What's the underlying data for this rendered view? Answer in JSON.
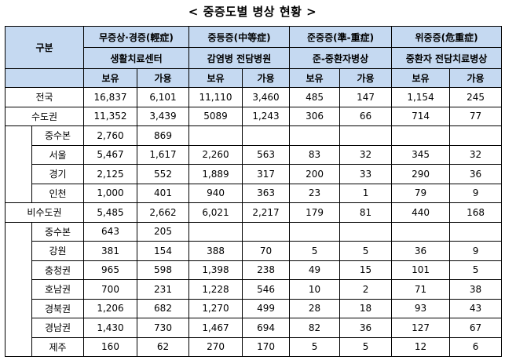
{
  "title": "< 중증도별 병상 현황 >",
  "header": {
    "gubun": "구분",
    "groups": [
      {
        "label": "무증상·경증(輕症)",
        "facility": "생활치료센터"
      },
      {
        "label": "중등증(中等症)",
        "facility": "감염병 전담병원"
      },
      {
        "label": "준중증(準-重症)",
        "facility": "준-중환자병상"
      },
      {
        "label": "위중증(危重症)",
        "facility": "중환자 전담치료병상"
      }
    ],
    "hold": "보유",
    "avail": "가용"
  },
  "rows": [
    {
      "name": "전국",
      "level": 0,
      "v": [
        "16,837",
        "6,101",
        "11,110",
        "3,460",
        "485",
        "147",
        "1,154",
        "245"
      ]
    },
    {
      "name": "수도권",
      "level": 0,
      "v": [
        "11,352",
        "3,439",
        "5089",
        "1,243",
        "306",
        "66",
        "714",
        "77"
      ]
    },
    {
      "name": "중수본",
      "level": 1,
      "v": [
        "2,760",
        "869",
        "",
        "",
        "",
        "",
        "",
        ""
      ]
    },
    {
      "name": "서울",
      "level": 1,
      "v": [
        "5,467",
        "1,617",
        "2,260",
        "563",
        "83",
        "32",
        "345",
        "32"
      ]
    },
    {
      "name": "경기",
      "level": 1,
      "v": [
        "2,125",
        "552",
        "1,889",
        "317",
        "200",
        "33",
        "290",
        "36"
      ]
    },
    {
      "name": "인천",
      "level": 1,
      "v": [
        "1,000",
        "401",
        "940",
        "363",
        "23",
        "1",
        "79",
        "9"
      ]
    },
    {
      "name": "비수도권",
      "level": 0,
      "v": [
        "5,485",
        "2,662",
        "6,021",
        "2,217",
        "179",
        "81",
        "440",
        "168"
      ]
    },
    {
      "name": "중수본",
      "level": 1,
      "v": [
        "643",
        "205",
        "",
        "",
        "",
        "",
        "",
        ""
      ]
    },
    {
      "name": "강원",
      "level": 1,
      "v": [
        "381",
        "154",
        "388",
        "70",
        "5",
        "5",
        "36",
        "9"
      ]
    },
    {
      "name": "충청권",
      "level": 1,
      "v": [
        "965",
        "598",
        "1,398",
        "238",
        "49",
        "15",
        "101",
        "5"
      ]
    },
    {
      "name": "호남권",
      "level": 1,
      "v": [
        "700",
        "231",
        "1,228",
        "546",
        "10",
        "2",
        "71",
        "38"
      ]
    },
    {
      "name": "경북권",
      "level": 1,
      "v": [
        "1,206",
        "682",
        "1,270",
        "499",
        "28",
        "18",
        "93",
        "43"
      ]
    },
    {
      "name": "경남권",
      "level": 1,
      "v": [
        "1,430",
        "730",
        "1,467",
        "694",
        "82",
        "36",
        "127",
        "67"
      ]
    },
    {
      "name": "제주",
      "level": 1,
      "v": [
        "160",
        "62",
        "270",
        "170",
        "5",
        "5",
        "12",
        "6"
      ]
    }
  ],
  "colors": {
    "header_bg": "#c5d9f1",
    "border": "#000000"
  }
}
